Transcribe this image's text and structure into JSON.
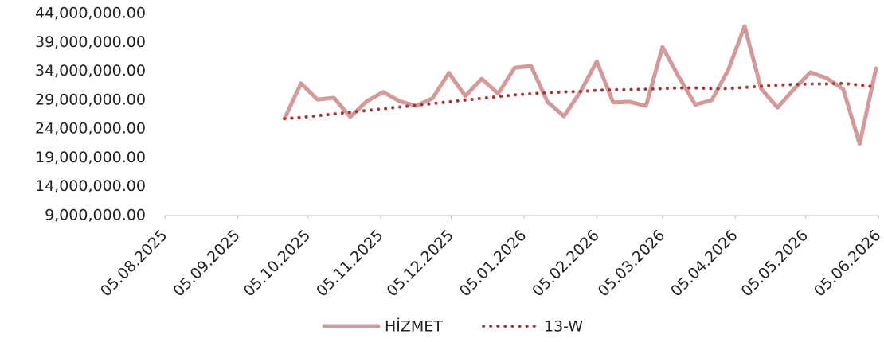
{
  "chart_data": {
    "type": "line",
    "x": [
      "2025-09-25",
      "2025-10-02",
      "2025-10-09",
      "2025-10-16",
      "2025-10-23",
      "2025-10-30",
      "2025-11-06",
      "2025-11-13",
      "2025-11-20",
      "2025-11-27",
      "2025-12-04",
      "2025-12-11",
      "2025-12-18",
      "2025-12-25",
      "2026-01-01",
      "2026-01-08",
      "2026-01-15",
      "2026-01-22",
      "2026-01-29",
      "2026-02-05",
      "2026-02-12",
      "2026-02-19",
      "2026-02-26",
      "2026-03-05",
      "2026-03-12",
      "2026-03-19",
      "2026-03-26",
      "2026-04-02",
      "2026-04-09",
      "2026-04-16",
      "2026-04-23",
      "2026-04-30",
      "2026-05-07",
      "2026-05-14",
      "2026-05-21",
      "2026-05-28",
      "2026-06-04"
    ],
    "series": [
      {
        "name": "HİZMET",
        "color": "#d49a9a",
        "style": "solid",
        "values": [
          25800000,
          31900000,
          29100000,
          29400000,
          26100000,
          28800000,
          30400000,
          28800000,
          28000000,
          29300000,
          33700000,
          29700000,
          32700000,
          30100000,
          34600000,
          34900000,
          28700000,
          26200000,
          30400000,
          35700000,
          28600000,
          28700000,
          28000000,
          38200000,
          33000000,
          28200000,
          29000000,
          34200000,
          41800000,
          31000000,
          27700000,
          30900000,
          33800000,
          32800000,
          30900000,
          21400000,
          34500000
        ]
      },
      {
        "name": "13-W",
        "color": "#a33a3a",
        "style": "dotted",
        "values": [
          25800000,
          26000000,
          26300000,
          26600000,
          26900000,
          27200000,
          27500000,
          27800000,
          28100000,
          28400000,
          28700000,
          29000000,
          29300000,
          29600000,
          29900000,
          30100000,
          30300000,
          30400000,
          30500000,
          30700000,
          30800000,
          30800000,
          30900000,
          31000000,
          31100000,
          31100000,
          31000000,
          31000000,
          31200000,
          31400000,
          31600000,
          31700000,
          31800000,
          31800000,
          31900000,
          31600000,
          31300000
        ]
      }
    ],
    "xlim": [
      "2025-08-05",
      "2026-06-05"
    ],
    "xticks": [
      {
        "value": "2025-08-05",
        "label": "05.08.2025"
      },
      {
        "value": "2025-09-05",
        "label": "05.09.2025"
      },
      {
        "value": "2025-10-05",
        "label": "05.10.2025"
      },
      {
        "value": "2025-11-05",
        "label": "05.11.2025"
      },
      {
        "value": "2025-12-05",
        "label": "05.12.2025"
      },
      {
        "value": "2026-01-05",
        "label": "05.01.2026"
      },
      {
        "value": "2026-02-05",
        "label": "05.02.2026"
      },
      {
        "value": "2026-03-05",
        "label": "05.03.2026"
      },
      {
        "value": "2026-04-05",
        "label": "05.04.2026"
      },
      {
        "value": "2026-05-05",
        "label": "05.05.2026"
      },
      {
        "value": "2026-06-05",
        "label": "05.06.2026"
      }
    ],
    "ylim": [
      9000000,
      44000000
    ],
    "yticks": [
      {
        "value": 9000000,
        "label": "9,000,000.00"
      },
      {
        "value": 14000000,
        "label": "14,000,000.00"
      },
      {
        "value": 19000000,
        "label": "19,000,000.00"
      },
      {
        "value": 24000000,
        "label": "24,000,000.00"
      },
      {
        "value": 29000000,
        "label": "29,000,000.00"
      },
      {
        "value": 34000000,
        "label": "34,000,000.00"
      },
      {
        "value": 39000000,
        "label": "39,000,000.00"
      },
      {
        "value": 44000000,
        "label": "44,000,000.00"
      }
    ],
    "grid": false,
    "legend": "bottom"
  }
}
